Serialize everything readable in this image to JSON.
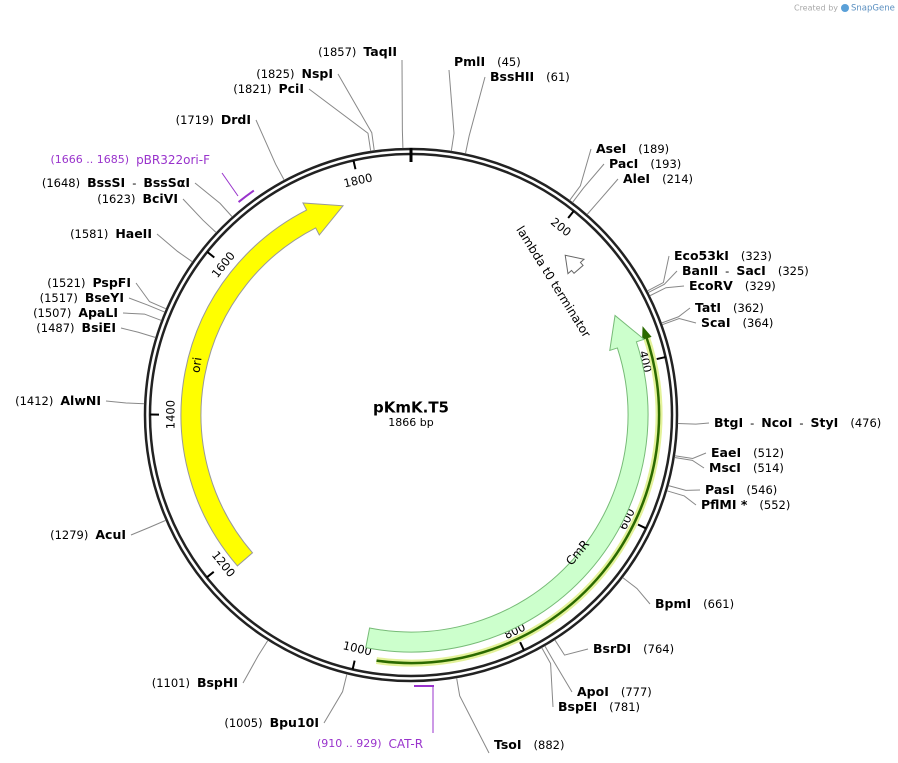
{
  "header": {
    "created_by": "Created by",
    "brand": "SnapGene"
  },
  "plasmid": {
    "name": "pKmK.T5",
    "length": "1866 bp",
    "total": 1866
  },
  "separator": "-",
  "ticks": [
    200,
    400,
    600,
    800,
    1000,
    1200,
    1400,
    1600,
    1800
  ],
  "features": {
    "ori": "ori",
    "cmr": "CmR",
    "terminator": "lambda t0 terminator"
  },
  "primers": [
    {
      "name": "pBR322ori-F",
      "range": "(1666 .. 1685)",
      "color": "#9933cc"
    },
    {
      "name": "CAT-R",
      "range": "(910 .. 929)",
      "color": "#9933cc"
    }
  ],
  "enzymes": [
    {
      "names": [
        "TaqII"
      ],
      "site": {
        "value": 1857,
        "label": "(1857)"
      }
    },
    {
      "names": [
        "NspI"
      ],
      "site": {
        "value": 1825,
        "label": "(1825)"
      }
    },
    {
      "names": [
        "PciI"
      ],
      "site": {
        "value": 1821,
        "label": "(1821)"
      }
    },
    {
      "names": [
        "DrdI"
      ],
      "site": {
        "value": 1719,
        "label": "(1719)"
      }
    },
    {
      "names": [
        "BssSI",
        "BssSαI"
      ],
      "site": {
        "value": 1648,
        "label": "(1648)"
      }
    },
    {
      "names": [
        "BciVI"
      ],
      "site": {
        "value": 1623,
        "label": "(1623)"
      }
    },
    {
      "names": [
        "HaeII"
      ],
      "site": {
        "value": 1581,
        "label": "(1581)"
      }
    },
    {
      "names": [
        "PspFI"
      ],
      "site": {
        "value": 1521,
        "label": "(1521)"
      }
    },
    {
      "names": [
        "BseYI"
      ],
      "site": {
        "value": 1517,
        "label": "(1517)"
      }
    },
    {
      "names": [
        "ApaLI"
      ],
      "site": {
        "value": 1507,
        "label": "(1507)"
      }
    },
    {
      "names": [
        "BsiEI"
      ],
      "site": {
        "value": 1487,
        "label": "(1487)"
      }
    },
    {
      "names": [
        "AlwNI"
      ],
      "site": {
        "value": 1412,
        "label": "(1412)"
      }
    },
    {
      "names": [
        "AcuI"
      ],
      "site": {
        "value": 1279,
        "label": "(1279)"
      }
    },
    {
      "names": [
        "BspHI"
      ],
      "site": {
        "value": 1101,
        "label": "(1101)"
      }
    },
    {
      "names": [
        "Bpu10I"
      ],
      "site": {
        "value": 1005,
        "label": "(1005)"
      }
    },
    {
      "names": [
        "PmlI"
      ],
      "site": {
        "value": 45,
        "label": "(45)"
      }
    },
    {
      "names": [
        "BssHII"
      ],
      "site": {
        "value": 61,
        "label": "(61)"
      }
    },
    {
      "names": [
        "AseI"
      ],
      "site": {
        "value": 189,
        "label": "(189)"
      }
    },
    {
      "names": [
        "PacI"
      ],
      "site": {
        "value": 193,
        "label": "(193)"
      }
    },
    {
      "names": [
        "AleI"
      ],
      "site": {
        "value": 214,
        "label": "(214)"
      }
    },
    {
      "names": [
        "Eco53kI"
      ],
      "site": {
        "value": 323,
        "label": "(323)"
      }
    },
    {
      "names": [
        "BanII",
        "SacI"
      ],
      "site": {
        "value": 325,
        "label": "(325)"
      }
    },
    {
      "names": [
        "EcoRV"
      ],
      "site": {
        "value": 329,
        "label": "(329)"
      }
    },
    {
      "names": [
        "TatI"
      ],
      "site": {
        "value": 362,
        "label": "(362)"
      }
    },
    {
      "names": [
        "ScaI"
      ],
      "site": {
        "value": 364,
        "label": "(364)"
      }
    },
    {
      "names": [
        "BtgI",
        "NcoI",
        "StyI"
      ],
      "site": {
        "value": 476,
        "label": "(476)"
      }
    },
    {
      "names": [
        "EaeI"
      ],
      "site": {
        "value": 512,
        "label": "(512)"
      }
    },
    {
      "names": [
        "MscI"
      ],
      "site": {
        "value": 514,
        "label": "(514)"
      }
    },
    {
      "names": [
        "PasI"
      ],
      "site": {
        "value": 546,
        "label": "(546)"
      }
    },
    {
      "names": [
        "PflMI *"
      ],
      "site": {
        "value": 552,
        "label": "(552)"
      }
    },
    {
      "names": [
        "BpmI"
      ],
      "site": {
        "value": 661,
        "label": "(661)"
      }
    },
    {
      "names": [
        "BsrDI"
      ],
      "site": {
        "value": 764,
        "label": "(764)"
      }
    },
    {
      "names": [
        "ApoI"
      ],
      "site": {
        "value": 777,
        "label": "(777)"
      }
    },
    {
      "names": [
        "BspEI"
      ],
      "site": {
        "value": 781,
        "label": "(781)"
      }
    },
    {
      "names": [
        "TsoI"
      ],
      "site": {
        "value": 882,
        "label": "(882)"
      }
    }
  ]
}
